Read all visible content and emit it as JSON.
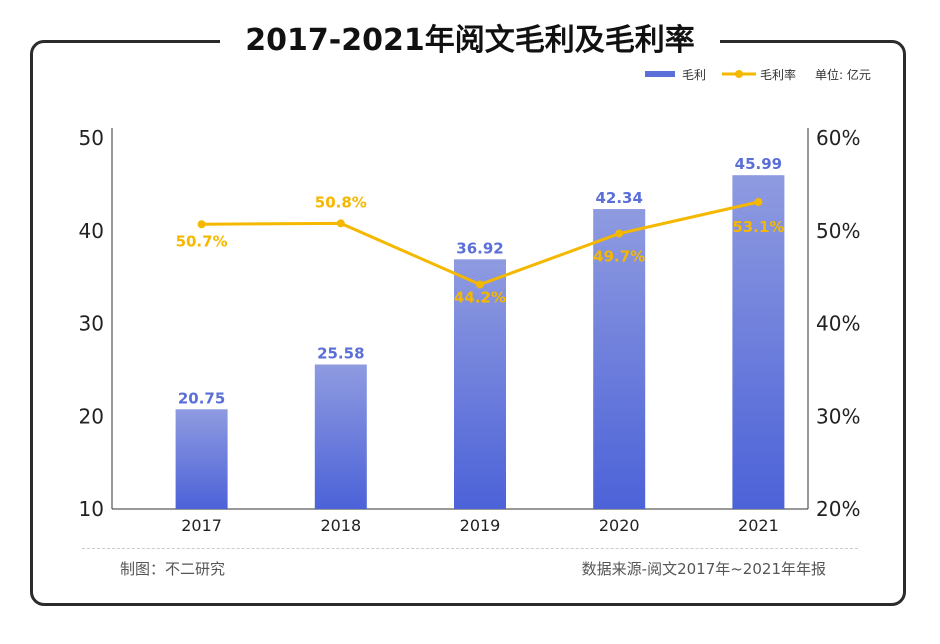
{
  "chart_data": {
    "type": "bar",
    "title": "2017-2021年阅文毛利及毛利率",
    "unit_label": "单位: 亿元",
    "categories": [
      "2017",
      "2018",
      "2019",
      "2020",
      "2021"
    ],
    "series": [
      {
        "name": "毛利",
        "type": "bar",
        "axis": "left",
        "values": [
          20.75,
          25.58,
          36.92,
          42.34,
          45.99
        ],
        "labels": [
          "20.75",
          "25.58",
          "36.92",
          "42.34",
          "45.99"
        ],
        "color": "#5b6fd8"
      },
      {
        "name": "毛利率",
        "type": "line",
        "axis": "right",
        "values": [
          50.7,
          50.8,
          44.2,
          49.7,
          53.1
        ],
        "labels": [
          "50.7%",
          "50.8%",
          "44.2%",
          "49.7%",
          "53.1%"
        ],
        "color": "#f5b800"
      }
    ],
    "y_left": {
      "range": [
        10,
        50
      ],
      "ticks": [
        "10",
        "20",
        "30",
        "40",
        "50"
      ]
    },
    "y_right": {
      "range": [
        20,
        60
      ],
      "ticks": [
        "20%",
        "30%",
        "40%",
        "50%",
        "60%"
      ]
    },
    "legend_position": "top-right",
    "grid": false
  },
  "footer": {
    "left": "制图：不二研究",
    "right": "数据来源-阅文2017年~2021年年报"
  },
  "watermark": "不二研究"
}
